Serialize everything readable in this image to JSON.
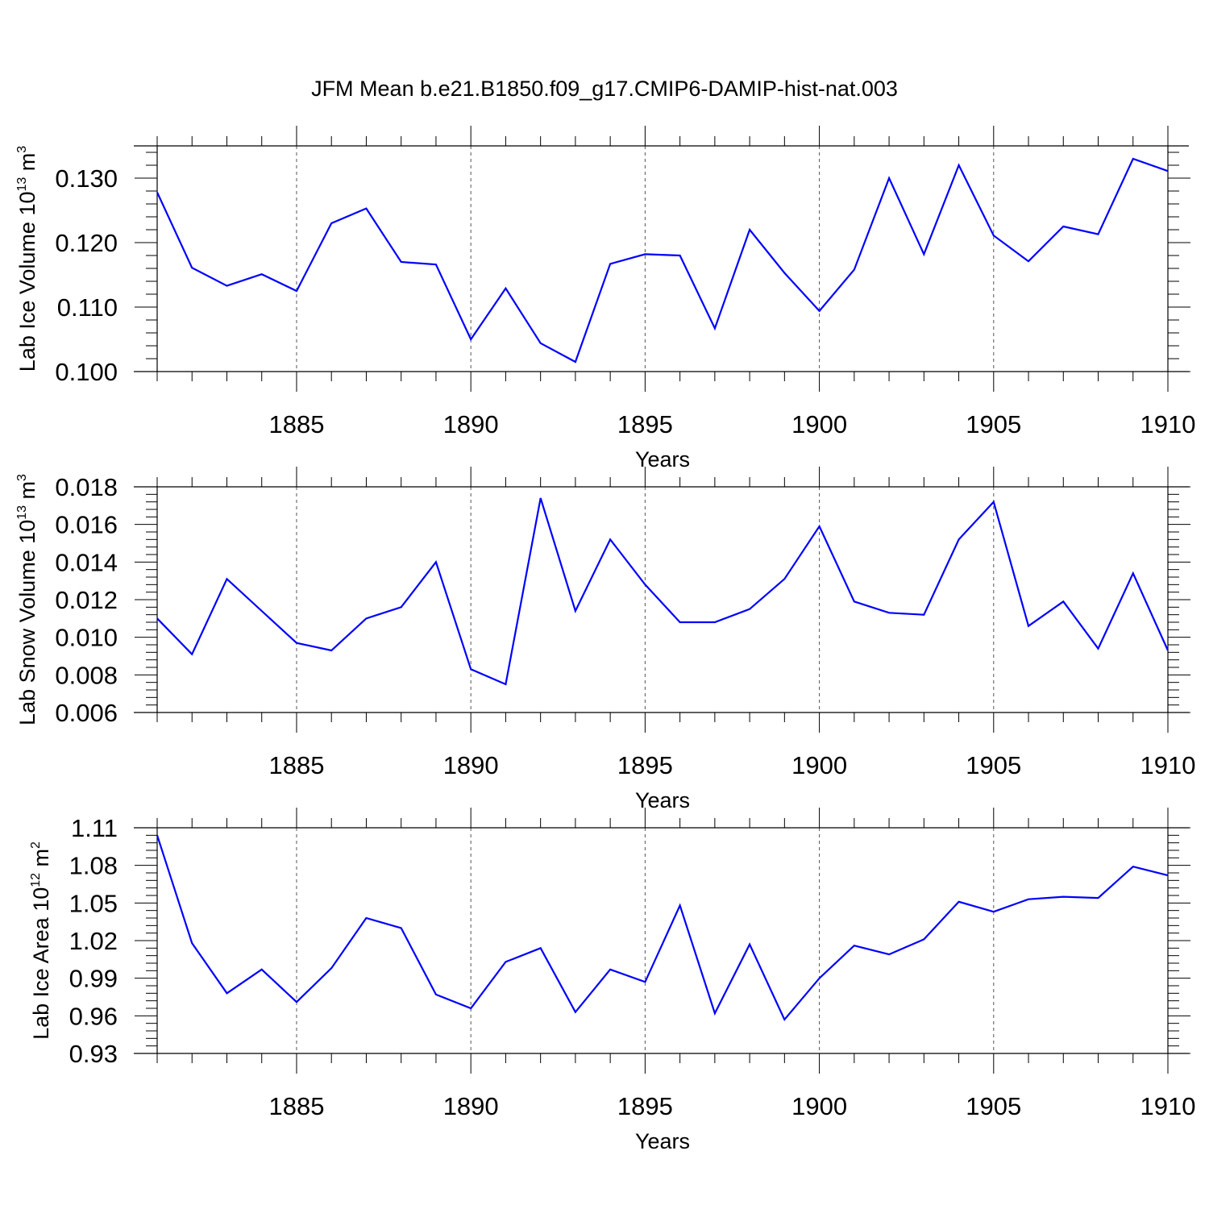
{
  "title": "JFM Mean b.e21.B1850.f09_g17.CMIP6-DAMIP-hist-nat.003",
  "colors": {
    "series": "#0000ff",
    "axis": "#000000",
    "grid": "#555555"
  },
  "chart_data": [
    {
      "type": "line",
      "ylabel": {
        "main": "Lab Ice Volume 10",
        "exp": "13",
        "unit": " m",
        "unit_exp": "3"
      },
      "xlabel": "Years",
      "xlim": [
        1881,
        1910
      ],
      "ylim": [
        0.1,
        0.135
      ],
      "yticks": [
        0.1,
        0.11,
        0.12,
        0.13
      ],
      "ytick_labels": [
        "0.100",
        "0.110",
        "0.120",
        "0.130"
      ],
      "xticks": [
        1885,
        1890,
        1895,
        1900,
        1905,
        1910
      ],
      "xtick_labels": [
        "1885",
        "1890",
        "1895",
        "1900",
        "1905",
        "1910"
      ],
      "grid": "vertical dashed at labeled years",
      "series": [
        {
          "x": [
            1881,
            1882,
            1883,
            1884,
            1885,
            1886,
            1887,
            1888,
            1889,
            1890,
            1891,
            1892,
            1893,
            1894,
            1895,
            1896,
            1897,
            1898,
            1899,
            1900,
            1901,
            1902,
            1903,
            1904,
            1905,
            1906,
            1907,
            1908,
            1909,
            1910
          ],
          "values": [
            0.1278,
            0.1161,
            0.1133,
            0.1151,
            0.1125,
            0.123,
            0.1253,
            0.117,
            0.1166,
            0.105,
            0.1129,
            0.1044,
            0.1015,
            0.1167,
            0.1182,
            0.118,
            0.1067,
            0.122,
            0.1153,
            0.1094,
            0.1158,
            0.13,
            0.1182,
            0.132,
            0.1211,
            0.1171,
            0.1225,
            0.1213,
            0.133,
            0.1311
          ]
        }
      ]
    },
    {
      "type": "line",
      "ylabel": {
        "main": "Lab Snow Volume 10",
        "exp": "13",
        "unit": " m",
        "unit_exp": "3"
      },
      "xlabel": "Years",
      "xlim": [
        1881,
        1910
      ],
      "ylim": [
        0.006,
        0.018
      ],
      "yticks": [
        0.006,
        0.008,
        0.01,
        0.012,
        0.014,
        0.016,
        0.018
      ],
      "ytick_labels": [
        "0.006",
        "0.008",
        "0.010",
        "0.012",
        "0.014",
        "0.016",
        "0.018"
      ],
      "xticks": [
        1885,
        1890,
        1895,
        1900,
        1905,
        1910
      ],
      "xtick_labels": [
        "1885",
        "1890",
        "1895",
        "1900",
        "1905",
        "1910"
      ],
      "grid": "vertical dashed at labeled years",
      "series": [
        {
          "x": [
            1881,
            1882,
            1883,
            1884,
            1885,
            1886,
            1887,
            1888,
            1889,
            1890,
            1891,
            1892,
            1893,
            1894,
            1895,
            1896,
            1897,
            1898,
            1899,
            1900,
            1901,
            1902,
            1903,
            1904,
            1905,
            1906,
            1907,
            1908,
            1909,
            1910
          ],
          "values": [
            0.011,
            0.0091,
            0.0131,
            0.0114,
            0.0097,
            0.0093,
            0.011,
            0.0116,
            0.014,
            0.0083,
            0.0075,
            0.0174,
            0.0114,
            0.0152,
            0.0128,
            0.0108,
            0.0108,
            0.0115,
            0.0131,
            0.0159,
            0.0119,
            0.0113,
            0.0112,
            0.0152,
            0.0172,
            0.0106,
            0.0119,
            0.0094,
            0.0134,
            0.0093
          ]
        }
      ]
    },
    {
      "type": "line",
      "ylabel": {
        "main": "Lab Ice Area 10",
        "exp": "12",
        "unit": " m",
        "unit_exp": "2"
      },
      "xlabel": "Years",
      "xlim": [
        1881,
        1910
      ],
      "ylim": [
        0.93,
        1.11
      ],
      "yticks": [
        0.93,
        0.96,
        0.99,
        1.02,
        1.05,
        1.08,
        1.11
      ],
      "ytick_labels": [
        "0.93",
        "0.96",
        "0.99",
        "1.02",
        "1.05",
        "1.08",
        "1.11"
      ],
      "xticks": [
        1885,
        1890,
        1895,
        1900,
        1905,
        1910
      ],
      "xtick_labels": [
        "1885",
        "1890",
        "1895",
        "1900",
        "1905",
        "1910"
      ],
      "grid": "vertical dashed at labeled years",
      "series": [
        {
          "x": [
            1881,
            1882,
            1883,
            1884,
            1885,
            1886,
            1887,
            1888,
            1889,
            1890,
            1891,
            1892,
            1893,
            1894,
            1895,
            1896,
            1897,
            1898,
            1899,
            1900,
            1901,
            1902,
            1903,
            1904,
            1905,
            1906,
            1907,
            1908,
            1909,
            1910
          ],
          "values": [
            1.104,
            1.018,
            0.978,
            0.997,
            0.971,
            0.998,
            1.038,
            1.03,
            0.977,
            0.966,
            1.003,
            1.014,
            0.963,
            0.997,
            0.987,
            1.048,
            0.962,
            1.017,
            0.957,
            0.99,
            1.016,
            1.009,
            1.021,
            1.051,
            1.043,
            1.053,
            1.055,
            1.054,
            1.079,
            1.072
          ]
        }
      ]
    }
  ]
}
